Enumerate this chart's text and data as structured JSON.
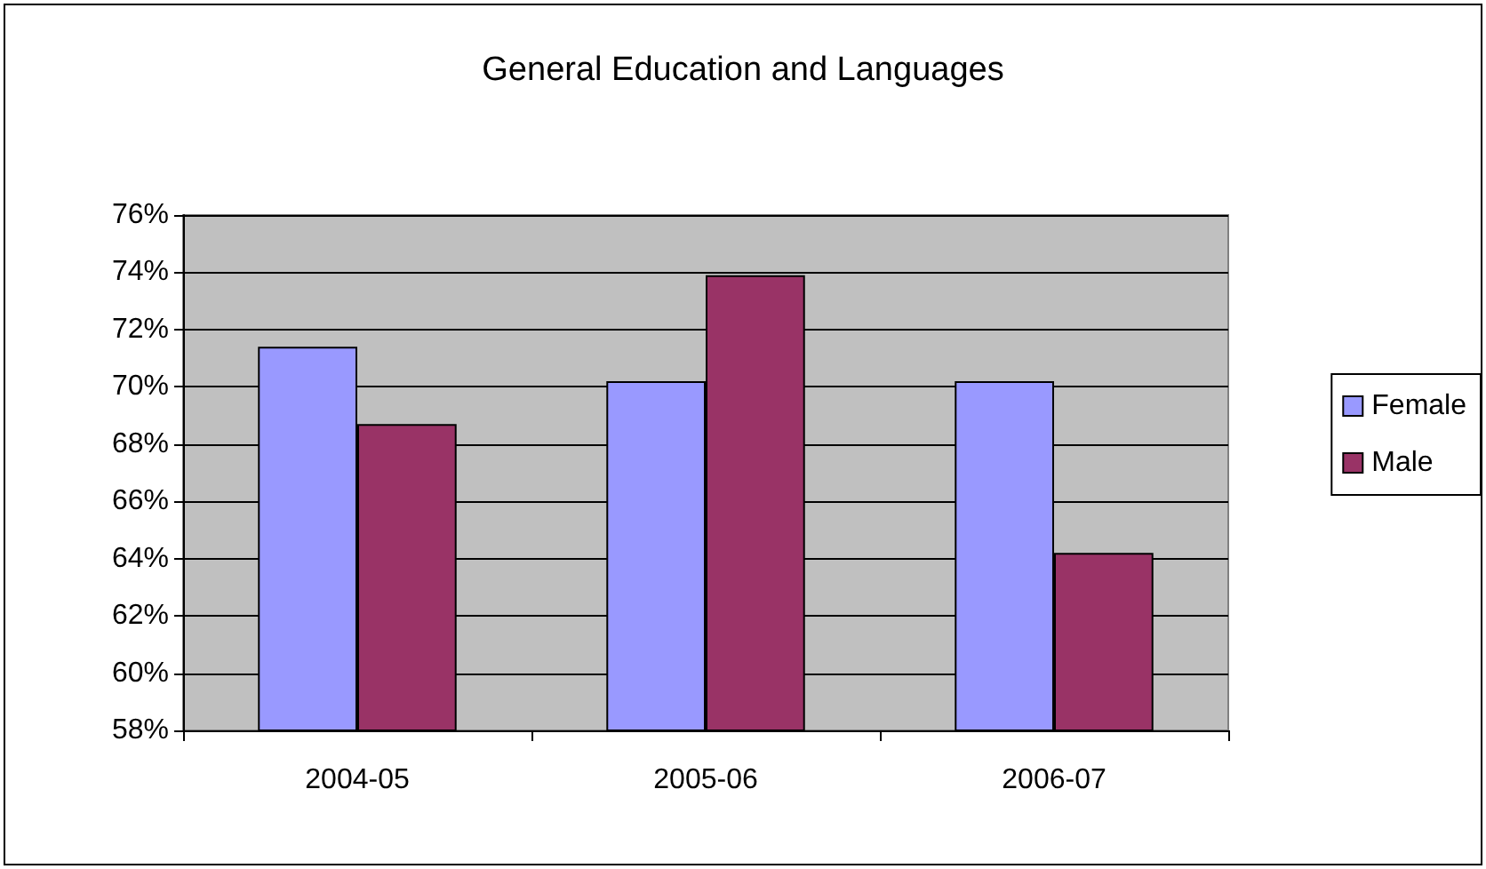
{
  "chart_data": {
    "type": "bar",
    "title": "General Education and Languages",
    "categories": [
      "2004-05",
      "2005-06",
      "2006-07"
    ],
    "series": [
      {
        "name": "Female",
        "color": "#9999ff",
        "values": [
          71.4,
          70.2,
          70.2
        ]
      },
      {
        "name": "Male",
        "color": "#993366",
        "values": [
          68.7,
          73.9,
          64.2
        ]
      }
    ],
    "ylim": [
      58,
      76
    ],
    "yticks": [
      {
        "value": 58,
        "label": "58%"
      },
      {
        "value": 60,
        "label": "60%"
      },
      {
        "value": 62,
        "label": "62%"
      },
      {
        "value": 64,
        "label": "64%"
      },
      {
        "value": 66,
        "label": "66%"
      },
      {
        "value": 68,
        "label": "68%"
      },
      {
        "value": 70,
        "label": "70%"
      },
      {
        "value": 72,
        "label": "72%"
      },
      {
        "value": 74,
        "label": "74%"
      },
      {
        "value": 76,
        "label": "76%"
      }
    ],
    "grid": "y",
    "legend": "right"
  }
}
